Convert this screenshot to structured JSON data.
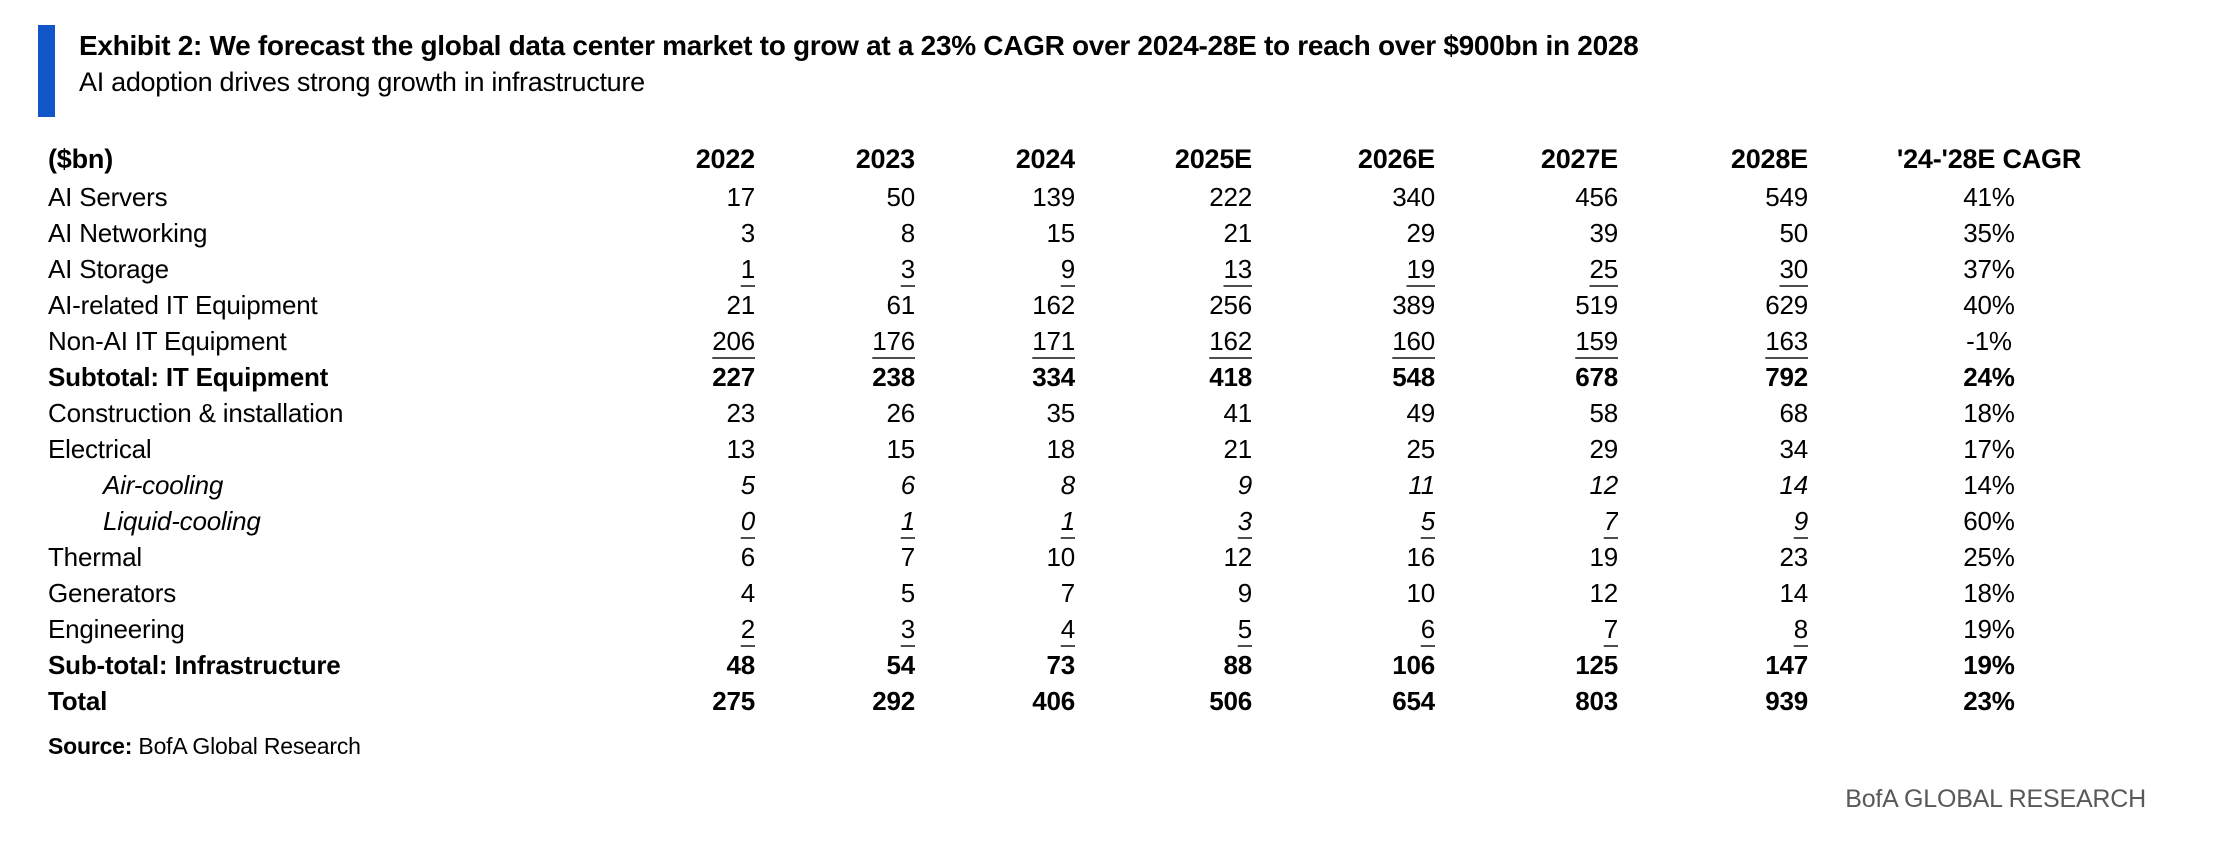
{
  "accent_color": "#1156c8",
  "header": {
    "title": "Exhibit 2: We forecast the global data center market to grow at a 23% CAGR over 2024-28E to reach over $900bn in 2028",
    "subtitle": "AI adoption drives strong growth in infrastructure"
  },
  "chart_data": {
    "type": "table",
    "title": "Global data center market forecast ($bn)",
    "unit": "$bn",
    "columns": [
      "($bn)",
      "2022",
      "2023",
      "2024",
      "2025E",
      "2026E",
      "2027E",
      "2028E",
      "'24-'28E CAGR"
    ],
    "rows": [
      {
        "label": "AI Servers",
        "values": [
          17,
          50,
          139,
          222,
          340,
          456,
          549
        ],
        "cagr": "41%",
        "bold": false,
        "underline": false,
        "italic": false,
        "indent": false
      },
      {
        "label": "AI Networking",
        "values": [
          3,
          8,
          15,
          21,
          29,
          39,
          50
        ],
        "cagr": "35%",
        "bold": false,
        "underline": false,
        "italic": false,
        "indent": false
      },
      {
        "label": "AI Storage",
        "values": [
          1,
          3,
          9,
          13,
          19,
          25,
          30
        ],
        "cagr": "37%",
        "bold": false,
        "underline": true,
        "italic": false,
        "indent": false
      },
      {
        "label": "AI-related IT Equipment",
        "values": [
          21,
          61,
          162,
          256,
          389,
          519,
          629
        ],
        "cagr": "40%",
        "bold": false,
        "underline": false,
        "italic": false,
        "indent": false
      },
      {
        "label": "Non-AI IT Equipment",
        "values": [
          206,
          176,
          171,
          162,
          160,
          159,
          163
        ],
        "cagr": "-1%",
        "bold": false,
        "underline": true,
        "italic": false,
        "indent": false
      },
      {
        "label": "Subtotal: IT Equipment",
        "values": [
          227,
          238,
          334,
          418,
          548,
          678,
          792
        ],
        "cagr": "24%",
        "bold": true,
        "underline": false,
        "italic": false,
        "indent": false
      },
      {
        "label": "Construction & installation",
        "values": [
          23,
          26,
          35,
          41,
          49,
          58,
          68
        ],
        "cagr": "18%",
        "bold": false,
        "underline": false,
        "italic": false,
        "indent": false
      },
      {
        "label": "Electrical",
        "values": [
          13,
          15,
          18,
          21,
          25,
          29,
          34
        ],
        "cagr": "17%",
        "bold": false,
        "underline": false,
        "italic": false,
        "indent": false
      },
      {
        "label": "Air-cooling",
        "values": [
          5,
          6,
          8,
          9,
          11,
          12,
          14
        ],
        "cagr": "14%",
        "bold": false,
        "underline": false,
        "italic": true,
        "indent": true
      },
      {
        "label": "Liquid-cooling",
        "values": [
          0,
          1,
          1,
          3,
          5,
          7,
          9
        ],
        "cagr": "60%",
        "bold": false,
        "underline": true,
        "italic": true,
        "indent": true
      },
      {
        "label": "Thermal",
        "values": [
          6,
          7,
          10,
          12,
          16,
          19,
          23
        ],
        "cagr": "25%",
        "bold": false,
        "underline": false,
        "italic": false,
        "indent": false
      },
      {
        "label": "Generators",
        "values": [
          4,
          5,
          7,
          9,
          10,
          12,
          14
        ],
        "cagr": "18%",
        "bold": false,
        "underline": false,
        "italic": false,
        "indent": false
      },
      {
        "label": "Engineering",
        "values": [
          2,
          3,
          4,
          5,
          6,
          7,
          8
        ],
        "cagr": "19%",
        "bold": false,
        "underline": true,
        "italic": false,
        "indent": false
      },
      {
        "label": "Sub-total: Infrastructure",
        "values": [
          48,
          54,
          73,
          88,
          106,
          125,
          147
        ],
        "cagr": "19%",
        "bold": true,
        "underline": false,
        "italic": false,
        "indent": false
      },
      {
        "label": "Total",
        "values": [
          275,
          292,
          406,
          506,
          654,
          803,
          939
        ],
        "cagr": "23%",
        "bold": true,
        "underline": false,
        "italic": false,
        "indent": false
      }
    ]
  },
  "footer": {
    "source_label": "Source:",
    "source_text": " BofA Global Research",
    "brand": "BofA GLOBAL RESEARCH"
  }
}
